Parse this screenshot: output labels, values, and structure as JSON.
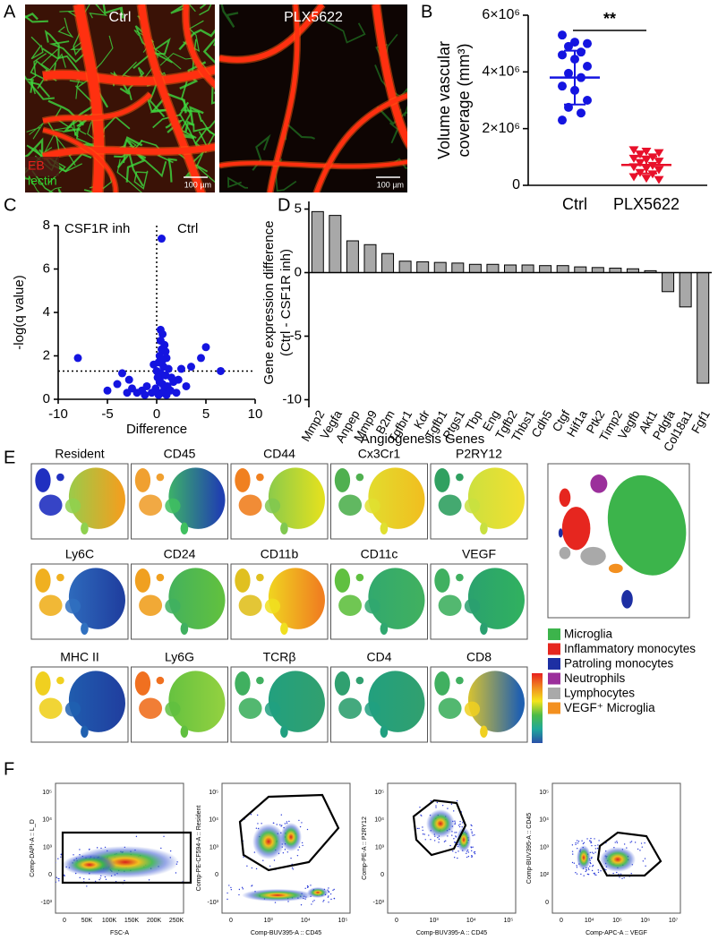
{
  "panel_labels": [
    "A",
    "B",
    "C",
    "D",
    "E",
    "F"
  ],
  "images": {
    "panels": [
      {
        "title": "Ctrl",
        "channels": [
          {
            "name": "EB",
            "color": "#e8221a"
          },
          {
            "name": "lectin",
            "color": "#2fd12f"
          }
        ],
        "scale_bar": "100 µm"
      },
      {
        "title": "PLX5622",
        "scale_bar": "100 µm"
      }
    ]
  },
  "chart_data": [
    {
      "type": "dot",
      "ylabel": [
        "Volume vascular",
        "coverage (mm³)"
      ],
      "ylim": [
        0,
        6000000
      ],
      "yticks": [
        0,
        {
          "value": 2000000,
          "label": "2×10⁶"
        },
        {
          "value": 4000000,
          "label": "4×10⁶"
        },
        {
          "value": 6000000,
          "label": "6×10⁶"
        }
      ],
      "annotation": "**",
      "series": [
        {
          "name": "Ctrl",
          "color": "#1414e0",
          "marker": "circle",
          "mean": 3800000,
          "sd": 950000,
          "values": [
            5300000,
            5050000,
            5000000,
            4900000,
            4700000,
            4600000,
            4450000,
            4200000,
            3950000,
            3800000,
            3500000,
            3350000,
            3000000,
            2750000,
            2550000,
            2300000
          ]
        },
        {
          "name": "PLX5622",
          "color": "#e8102a",
          "marker": "triangle",
          "mean": 720000,
          "sd": 300000,
          "values": [
            1250000,
            1200000,
            1150000,
            1100000,
            1000000,
            950000,
            900000,
            850000,
            800000,
            700000,
            650000,
            600000,
            550000,
            450000,
            400000,
            300000,
            250000,
            200000
          ]
        }
      ]
    },
    {
      "type": "scatter",
      "xlabel": "Difference",
      "ylabel": "-log(q value)",
      "annotations": [
        "CSF1R inh",
        "Ctrl"
      ],
      "color": "#1414e0",
      "xlim": [
        -10,
        10
      ],
      "ylim": [
        0,
        8
      ],
      "xticks": [
        -10,
        -5,
        0,
        5,
        10
      ],
      "yticks": [
        0,
        2,
        4,
        6,
        8
      ],
      "hline": 1.3,
      "vline": 0,
      "x": [
        -8,
        -5,
        -4,
        -3.5,
        -3,
        -2.8,
        -2.5,
        -2,
        -1.5,
        -1,
        -0.5,
        -0.3,
        0,
        0.2,
        0.3,
        0.5,
        0.4,
        0.6,
        0.4,
        0.8,
        0.5,
        0.9,
        0.3,
        1,
        0.6,
        0.2,
        0.7,
        1.2,
        0.4,
        0.9,
        1.5,
        0.3,
        0.6,
        1.1,
        0.8,
        1.4,
        2,
        0.5,
        1,
        -0.1,
        2.2,
        2.5,
        3,
        3.5,
        5,
        4.5,
        6.5,
        1.7,
        -1.2,
        0.1
      ],
      "values": [
        1.9,
        0.4,
        0.7,
        1.2,
        0.3,
        0.9,
        0.5,
        0.3,
        0.4,
        0.6,
        0.3,
        1.6,
        1.3,
        0.2,
        0.8,
        7.4,
        3.2,
        3,
        2.7,
        2.5,
        2.3,
        2.2,
        2,
        1.9,
        1.8,
        1.7,
        1.5,
        1.4,
        1.2,
        1.1,
        1,
        0.9,
        0.7,
        0.6,
        0.5,
        0.4,
        0.3,
        0.3,
        0.2,
        0.5,
        0.9,
        1.4,
        0.6,
        1.5,
        2.4,
        1.9,
        1.3,
        0.8,
        0.2,
        1
      ]
    },
    {
      "type": "bar",
      "xlabel": "Angiogenesis Genes",
      "ylabel": [
        "Gene expression difference",
        "(Ctrl - CSF1R inh)"
      ],
      "color": "#a8a8a8",
      "ylim": [
        -10.6,
        5.6
      ],
      "yticks": [
        -10,
        -5,
        0,
        5
      ],
      "categories": [
        "Mmp2",
        "Vegfa",
        "Anpep",
        "Mmp9",
        "B2m",
        "Tgfbr1",
        "Kdr",
        "Tgfb1",
        "Ptgs1",
        "Tbp",
        "Eng",
        "Tgfb2",
        "Thbs1",
        "Cdh5",
        "Ctgf",
        "Hif1a",
        "Ptk2",
        "Timp2",
        "Vegfb",
        "Akt1",
        "Pdgfa",
        "Col18a1",
        "Fgf1"
      ],
      "values": [
        4.8,
        4.5,
        2.5,
        2.2,
        1.5,
        0.9,
        0.85,
        0.8,
        0.75,
        0.65,
        0.65,
        0.6,
        0.6,
        0.55,
        0.55,
        0.45,
        0.4,
        0.35,
        0.3,
        0.15,
        -1.5,
        -2.7,
        -8.7
      ]
    }
  ],
  "tsne": {
    "plots": [
      "Resident",
      "CD45",
      "CD44",
      "Cx3Cr1",
      "P2RY12",
      "Ly6C",
      "CD24",
      "CD11b",
      "CD11c",
      "VEGF",
      "MHC II",
      "Ly6G",
      "TCRβ",
      "CD4",
      "CD8"
    ],
    "legend": [
      {
        "name": "Microglia",
        "color": "#3cb44b"
      },
      {
        "name": "Inflammatory monocytes",
        "color": "#e6261f"
      },
      {
        "name": "Patroling monocytes",
        "color": "#1d2fa3"
      },
      {
        "name": "Neutrophils",
        "color": "#9b2f9b"
      },
      {
        "name": "Lymphocytes",
        "color": "#a9a9a9"
      },
      {
        "name": "VEGF⁺ Microglia",
        "color": "#f39020"
      }
    ]
  },
  "flow": {
    "plots": [
      {
        "xlabel": "FSC-A",
        "ylabel": "Comp-DAPI-A :: L_D",
        "xticks": [
          "0",
          "50K",
          "100K",
          "150K",
          "200K",
          "250K"
        ],
        "yticks": [
          "-10³",
          "0",
          "10³",
          "10⁴",
          "10⁵"
        ]
      },
      {
        "xlabel": "Comp-BUV395-A :: CD45",
        "ylabel": "Comp-PE-CF594-A :: Resident",
        "xticks": [
          "0",
          "10³",
          "10⁴",
          "10⁵"
        ],
        "yticks": [
          "-10³",
          "0",
          "10³",
          "10⁴",
          "10⁵"
        ]
      },
      {
        "xlabel": "Comp-BUV395-A :: CD45",
        "ylabel": "Comp-PE-A :: P2RY12",
        "xticks": [
          "0",
          "10³",
          "10⁴",
          "10⁵"
        ],
        "yticks": [
          "-10³",
          "0",
          "10³",
          "10⁴",
          "10⁵"
        ]
      },
      {
        "xlabel": "Comp-APC-A :: VEGF",
        "ylabel": "Comp-BUV395-A :: CD45",
        "xticks": [
          "0",
          "10⁴",
          "10⁵",
          "10⁶",
          "10⁷"
        ],
        "yticks": [
          "0",
          "10²",
          "10³",
          "10⁴",
          "10⁵"
        ]
      }
    ]
  }
}
